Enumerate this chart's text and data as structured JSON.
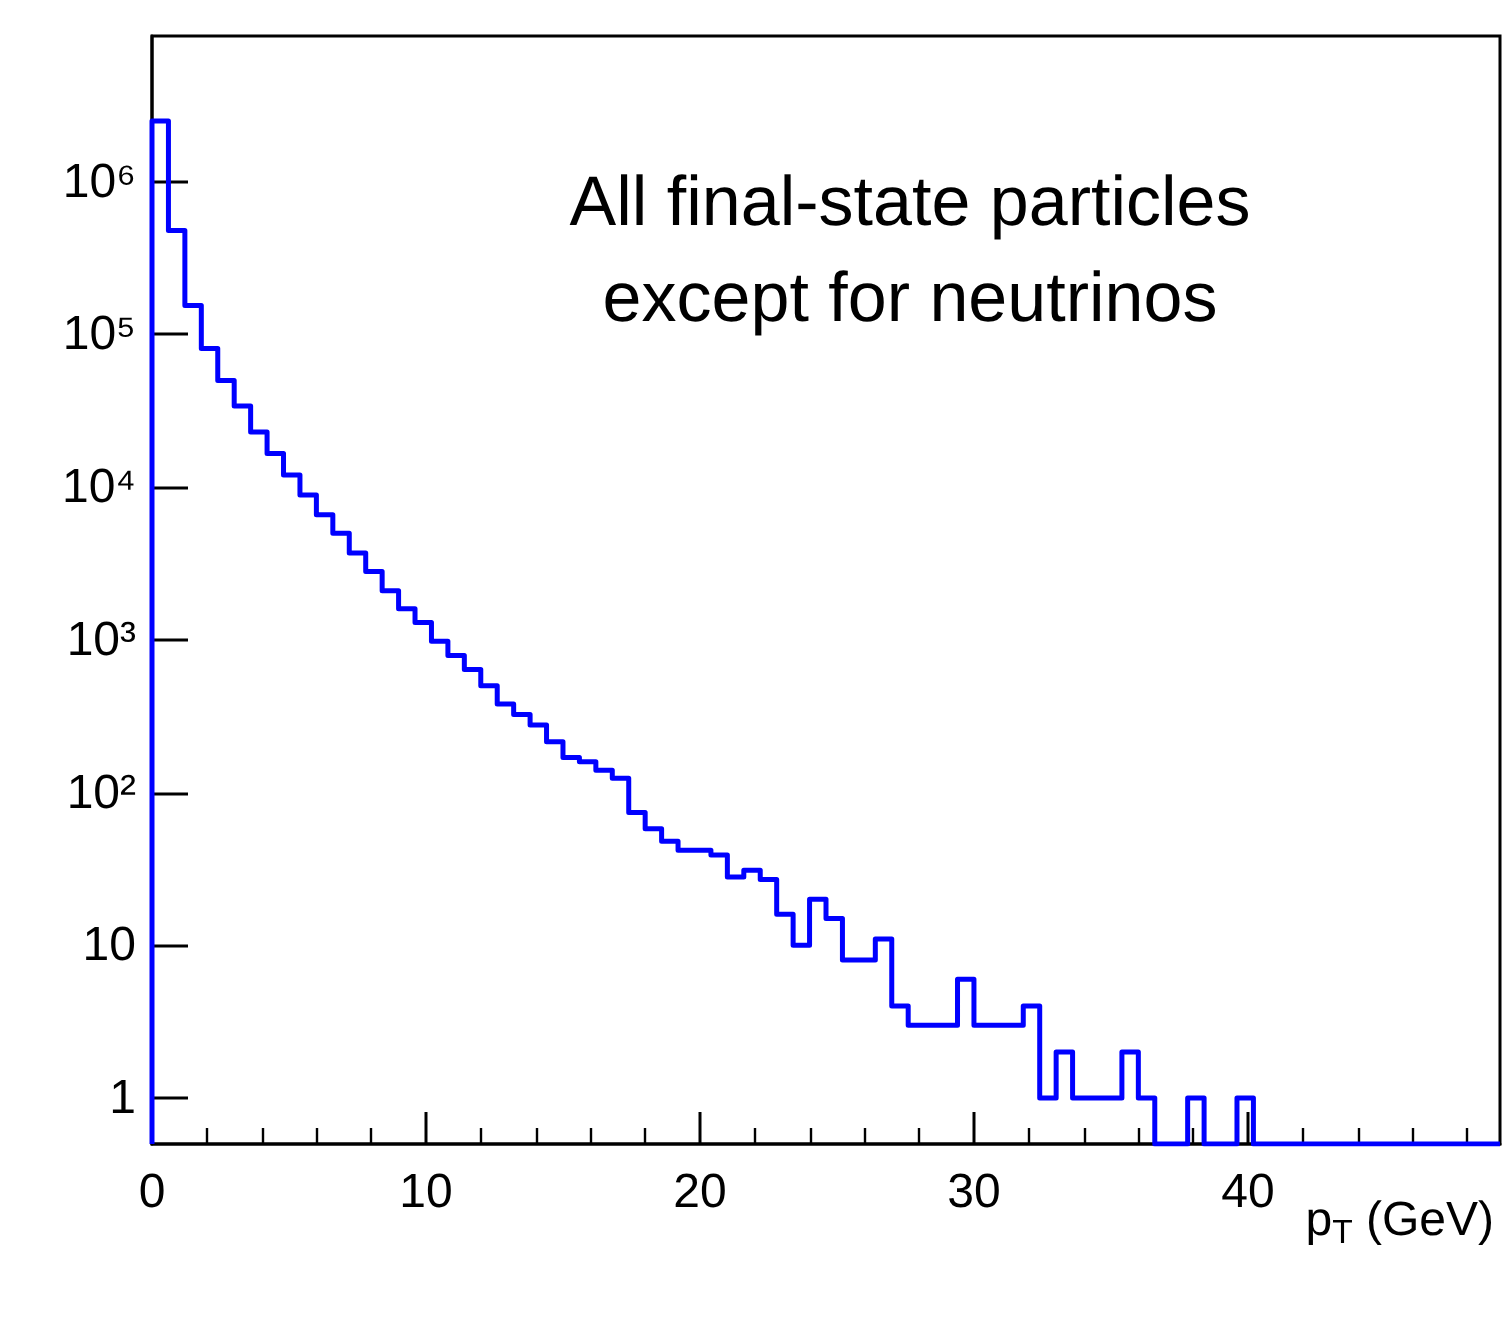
{
  "chart_data": {
    "type": "histogram",
    "title": "All final-state particles\nexcept for neutrinos",
    "xlabel": "p$_{T}$ (GeV)",
    "bins": [
      0,
      0.6,
      1.2,
      1.8,
      2.4,
      3,
      3.6,
      4.2,
      4.8,
      5.4,
      6,
      6.6,
      7.2,
      7.8,
      8.4,
      9,
      9.6,
      10.2,
      10.8,
      11.4,
      12,
      12.6,
      13.2,
      13.8,
      14.4,
      15,
      15.6,
      16.2,
      16.8,
      17.4,
      18,
      18.6,
      19.2,
      19.8,
      20.4,
      21,
      21.6,
      22.2,
      22.8,
      23.4,
      24,
      24.6,
      25.2,
      25.8,
      26.4,
      27,
      27.6,
      28.2,
      28.8,
      29.4,
      30,
      30.6,
      31.2,
      31.8,
      32.4,
      33,
      33.6,
      34.2,
      34.8,
      35.4,
      36,
      36.6,
      37.2,
      37.8,
      38.4,
      39,
      39.6,
      40.2,
      40.8,
      41.4,
      42,
      42.6,
      43.2,
      43.8,
      44.4,
      45,
      45.6,
      46.2,
      46.8,
      47.4,
      48,
      48.6,
      49.2
    ],
    "values": [
      2500000,
      480000,
      155000,
      81000,
      50000,
      34000,
      23000,
      16600,
      12000,
      8900,
      6600,
      5000,
      3700,
      2800,
      2100,
      1600,
      1300,
      980,
      790,
      640,
      500,
      380,
      325,
      277,
      215,
      170,
      159,
      140,
      124,
      74,
      58,
      48,
      42,
      42,
      39,
      28,
      31,
      27,
      16,
      10,
      20,
      15,
      8,
      8,
      11,
      4,
      3,
      3,
      3,
      6,
      3,
      3,
      3,
      4,
      1,
      2,
      1,
      1,
      1,
      2,
      1,
      null,
      null,
      1,
      null,
      null,
      1,
      null,
      null,
      null,
      null,
      null,
      null,
      null,
      null,
      null,
      null,
      null,
      null,
      null,
      null,
      null
    ],
    "color": "#0000ff",
    "log": "y",
    "xlim": [
      0,
      49.2
    ],
    "xticks": [
      0,
      10,
      20,
      30,
      40
    ],
    "ylim": [
      0.5,
      9000000
    ],
    "yticks": [
      1,
      10,
      {
        "value": 100,
        "label": "10²"
      },
      {
        "value": 1000,
        "label": "10³"
      },
      {
        "value": 10000,
        "label": "10⁴"
      },
      {
        "value": 100000,
        "label": "10⁵"
      },
      {
        "value": 1000000,
        "label": "10⁶"
      }
    ],
    "grid": false
  }
}
